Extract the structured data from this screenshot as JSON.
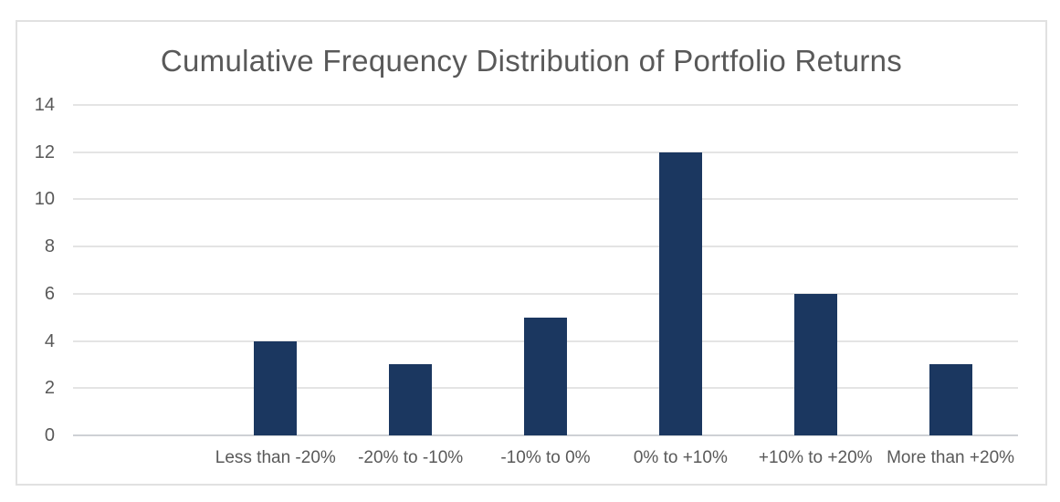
{
  "title": "Cumulative Frequency Distribution of Portfolio Returns",
  "chart_data": {
    "type": "bar",
    "title": "Cumulative Frequency Distribution of Portfolio Returns",
    "categories": [
      "Less than -20%",
      "-20% to -10%",
      "-10% to 0%",
      "0% to +10%",
      "+10% to +20%",
      "More than +20%"
    ],
    "values": [
      4,
      3,
      5,
      12,
      6,
      3
    ],
    "xlabel": "",
    "ylabel": "",
    "ylim": [
      0,
      14
    ],
    "yticks": [
      0,
      2,
      4,
      6,
      8,
      10,
      12,
      14
    ],
    "grid": true,
    "legend": "none",
    "leading_empty_slot": true,
    "bar_color": "#1b3760"
  },
  "colors": {
    "bar": "#1b3760",
    "title_text": "#595959",
    "axis_text": "#595959",
    "gridline": "#e4e4e4",
    "baseline": "#ced1d5",
    "card_border": "#e1e1e1",
    "background": "#ffffff"
  }
}
